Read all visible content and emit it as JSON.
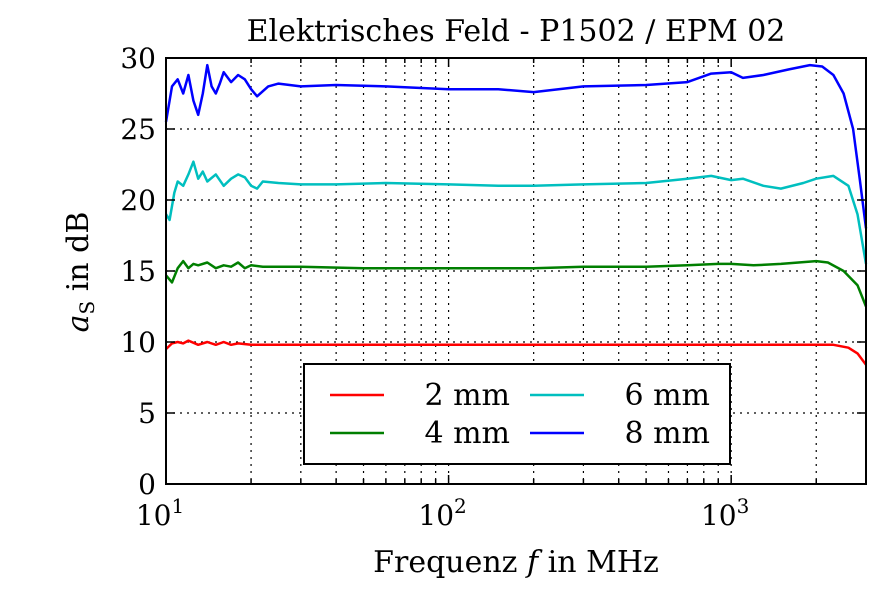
{
  "chart_data": {
    "type": "line",
    "title": "Elektrisches Feld - P1502 / EPM 02",
    "xlabel": "Frequenz f in MHz",
    "ylabel": "a_S in dB",
    "xscale": "log",
    "xlim": [
      10,
      3000
    ],
    "ylim": [
      0,
      30
    ],
    "yticks": [
      0,
      5,
      10,
      15,
      20,
      25,
      30
    ],
    "xticks": [
      10,
      100,
      1000
    ],
    "xtick_labels": [
      "10^1",
      "10^2",
      "10^3"
    ],
    "grid": true,
    "legend": {
      "position": "lower-center",
      "columns": 2,
      "frame": true
    },
    "series": [
      {
        "name": "2 mm",
        "color": "#ff0000",
        "points": [
          [
            10,
            9.5
          ],
          [
            10.5,
            9.9
          ],
          [
            11,
            10.0
          ],
          [
            11.5,
            9.9
          ],
          [
            12,
            10.1
          ],
          [
            13,
            9.8
          ],
          [
            14,
            10.0
          ],
          [
            15,
            9.8
          ],
          [
            16,
            10.0
          ],
          [
            17,
            9.8
          ],
          [
            18,
            9.9
          ],
          [
            20,
            9.8
          ],
          [
            25,
            9.8
          ],
          [
            30,
            9.8
          ],
          [
            50,
            9.8
          ],
          [
            100,
            9.8
          ],
          [
            200,
            9.8
          ],
          [
            300,
            9.8
          ],
          [
            500,
            9.8
          ],
          [
            800,
            9.8
          ],
          [
            1000,
            9.8
          ],
          [
            1500,
            9.8
          ],
          [
            2000,
            9.8
          ],
          [
            2300,
            9.8
          ],
          [
            2600,
            9.6
          ],
          [
            2800,
            9.2
          ],
          [
            3000,
            8.4
          ]
        ]
      },
      {
        "name": "4 mm",
        "color": "#007f00",
        "points": [
          [
            10,
            14.7
          ],
          [
            10.5,
            14.2
          ],
          [
            11,
            15.2
          ],
          [
            11.5,
            15.7
          ],
          [
            12,
            15.2
          ],
          [
            12.5,
            15.5
          ],
          [
            13,
            15.4
          ],
          [
            14,
            15.6
          ],
          [
            15,
            15.2
          ],
          [
            16,
            15.4
          ],
          [
            17,
            15.3
          ],
          [
            18,
            15.6
          ],
          [
            19,
            15.2
          ],
          [
            20,
            15.4
          ],
          [
            22,
            15.3
          ],
          [
            25,
            15.3
          ],
          [
            30,
            15.3
          ],
          [
            50,
            15.2
          ],
          [
            100,
            15.2
          ],
          [
            200,
            15.2
          ],
          [
            300,
            15.3
          ],
          [
            500,
            15.3
          ],
          [
            700,
            15.4
          ],
          [
            900,
            15.5
          ],
          [
            1000,
            15.5
          ],
          [
            1200,
            15.4
          ],
          [
            1500,
            15.5
          ],
          [
            2000,
            15.7
          ],
          [
            2200,
            15.6
          ],
          [
            2500,
            15.0
          ],
          [
            2800,
            14.0
          ],
          [
            3000,
            12.5
          ]
        ]
      },
      {
        "name": "6 mm",
        "color": "#00bfbf",
        "points": [
          [
            10,
            19.0
          ],
          [
            10.3,
            18.6
          ],
          [
            10.7,
            20.5
          ],
          [
            11,
            21.3
          ],
          [
            11.5,
            21.0
          ],
          [
            12,
            21.8
          ],
          [
            12.5,
            22.7
          ],
          [
            13,
            21.5
          ],
          [
            13.5,
            22.0
          ],
          [
            14,
            21.3
          ],
          [
            15,
            21.8
          ],
          [
            16,
            21.0
          ],
          [
            17,
            21.5
          ],
          [
            18,
            21.8
          ],
          [
            19,
            21.6
          ],
          [
            20,
            21.0
          ],
          [
            21,
            20.8
          ],
          [
            22,
            21.3
          ],
          [
            25,
            21.2
          ],
          [
            30,
            21.1
          ],
          [
            40,
            21.1
          ],
          [
            60,
            21.2
          ],
          [
            100,
            21.1
          ],
          [
            150,
            21.0
          ],
          [
            200,
            21.0
          ],
          [
            300,
            21.1
          ],
          [
            500,
            21.2
          ],
          [
            700,
            21.5
          ],
          [
            850,
            21.7
          ],
          [
            1000,
            21.4
          ],
          [
            1100,
            21.5
          ],
          [
            1300,
            21.0
          ],
          [
            1500,
            20.8
          ],
          [
            1800,
            21.2
          ],
          [
            2000,
            21.5
          ],
          [
            2300,
            21.7
          ],
          [
            2600,
            21.0
          ],
          [
            2800,
            19.0
          ],
          [
            3000,
            15.5
          ]
        ]
      },
      {
        "name": "8 mm",
        "color": "#0000ff",
        "points": [
          [
            10,
            25.5
          ],
          [
            10.2,
            26.5
          ],
          [
            10.5,
            28.0
          ],
          [
            11,
            28.5
          ],
          [
            11.5,
            27.5
          ],
          [
            12,
            28.8
          ],
          [
            12.5,
            27.0
          ],
          [
            13,
            26.0
          ],
          [
            13.5,
            27.5
          ],
          [
            14,
            29.5
          ],
          [
            14.5,
            28.0
          ],
          [
            15,
            27.5
          ],
          [
            15.5,
            28.2
          ],
          [
            16,
            29.0
          ],
          [
            17,
            28.3
          ],
          [
            18,
            28.8
          ],
          [
            19,
            28.5
          ],
          [
            20,
            27.8
          ],
          [
            21,
            27.3
          ],
          [
            23,
            28.0
          ],
          [
            25,
            28.2
          ],
          [
            30,
            28.0
          ],
          [
            40,
            28.1
          ],
          [
            60,
            28.0
          ],
          [
            100,
            27.8
          ],
          [
            150,
            27.8
          ],
          [
            200,
            27.6
          ],
          [
            300,
            28.0
          ],
          [
            500,
            28.1
          ],
          [
            700,
            28.3
          ],
          [
            850,
            28.9
          ],
          [
            1000,
            29.0
          ],
          [
            1100,
            28.6
          ],
          [
            1300,
            28.8
          ],
          [
            1600,
            29.2
          ],
          [
            1900,
            29.5
          ],
          [
            2100,
            29.4
          ],
          [
            2300,
            28.8
          ],
          [
            2500,
            27.5
          ],
          [
            2700,
            25.0
          ],
          [
            2850,
            21.5
          ],
          [
            3000,
            18.0
          ]
        ]
      }
    ]
  }
}
